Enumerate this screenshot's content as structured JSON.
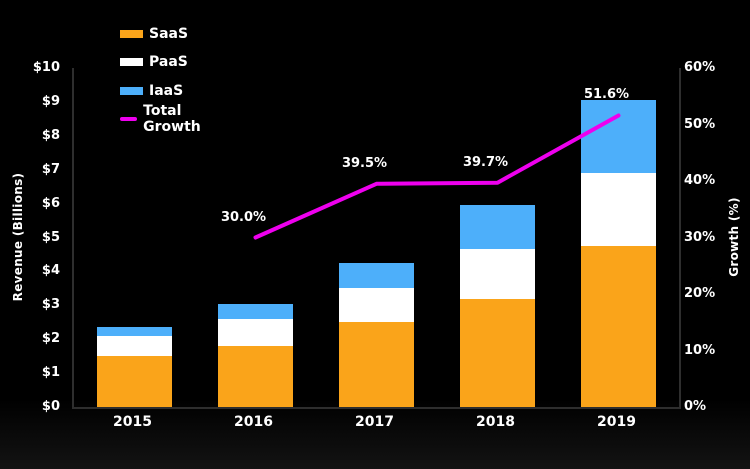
{
  "chart_data": {
    "type": "bar",
    "stacked": true,
    "title": "",
    "categories": [
      "2015",
      "2016",
      "2017",
      "2018",
      "2019"
    ],
    "series": [
      {
        "name": "SaaS",
        "color": "#FAA41A",
        "values": [
          1.5,
          1.8,
          2.5,
          3.2,
          4.75
        ]
      },
      {
        "name": "PaaS",
        "color": "#FFFFFF",
        "values": [
          0.6,
          0.8,
          1.0,
          1.45,
          2.15
        ]
      },
      {
        "name": "IaaS",
        "color": "#4DAFFA",
        "values": [
          0.25,
          0.45,
          0.75,
          1.3,
          2.15
        ]
      }
    ],
    "line_series": {
      "name": "Total Growth",
      "color": "#EE00EE",
      "values": [
        null,
        30.0,
        39.5,
        39.7,
        51.6
      ],
      "point_labels": [
        "",
        "30.0%",
        "39.5%",
        "39.7%",
        "51.6%"
      ]
    },
    "left_axis": {
      "title": "Revenue (Billions)",
      "min": 0,
      "max": 10,
      "ticks": [
        "$0",
        "$1",
        "$2",
        "$3",
        "$4",
        "$5",
        "$6",
        "$7",
        "$8",
        "$9",
        "$10"
      ]
    },
    "right_axis": {
      "title": "Growth (%)",
      "min": 0,
      "max": 60,
      "ticks": [
        "0%",
        "10%",
        "20%",
        "30%",
        "40%",
        "50%",
        "60%"
      ]
    },
    "legend": [
      {
        "label": "SaaS",
        "color": "#FAA41A",
        "swatch": "bar"
      },
      {
        "label": "PaaS",
        "color": "#FFFFFF",
        "swatch": "bar"
      },
      {
        "label": "IaaS",
        "color": "#4DAFFA",
        "swatch": "bar"
      },
      {
        "label": "Total Growth",
        "color": "#EE00EE",
        "swatch": "line"
      }
    ],
    "layout_hints": {
      "background": "#000000",
      "grid": false,
      "legend_position": "top-left",
      "text_color": "#FFFFFF",
      "spine_color": "#2e2e2e"
    }
  }
}
